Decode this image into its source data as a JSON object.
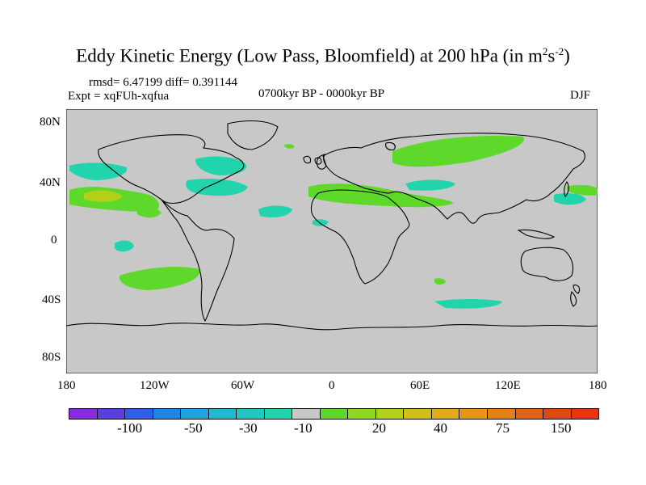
{
  "title": {
    "main": "Eddy Kinetic Energy (Low Pass, Bloomfield) at 200 hPa (in m",
    "sup1": "2",
    "mid": "s",
    "sup2": "-2",
    "end": ")"
  },
  "stats": "rmsd= 6.47199  diff= 0.391144",
  "expt": "Expt = xqFUh-xqfua",
  "period": "0700kyr BP - 0000kyr BP",
  "season": "DJF",
  "lat_labels": [
    "80N",
    "40N",
    "0",
    "40S",
    "80S"
  ],
  "lon_labels": [
    "180",
    "120W",
    "60W",
    "0",
    "60E",
    "120E",
    "180"
  ],
  "colorbar": {
    "colors": [
      "#8a2be2",
      "#5a3fe0",
      "#2f5fe6",
      "#1f86e3",
      "#1fa3df",
      "#22b9d3",
      "#22c8c0",
      "#22d4ab",
      "#c8c8c8",
      "#5fd82c",
      "#8fd61e",
      "#b2cf1a",
      "#cfc019",
      "#e3ab18",
      "#e89617",
      "#e67f16",
      "#e26315",
      "#de4913",
      "#e83311"
    ],
    "labels": [
      "-100",
      "-50",
      "-30",
      "-10",
      "20",
      "40",
      "75",
      "150"
    ]
  },
  "colors": {
    "ocean_land": "#c8c8c8",
    "cyan": "#22d4ab",
    "green": "#5fd82c",
    "yellowgreen": "#b2cf1a"
  }
}
